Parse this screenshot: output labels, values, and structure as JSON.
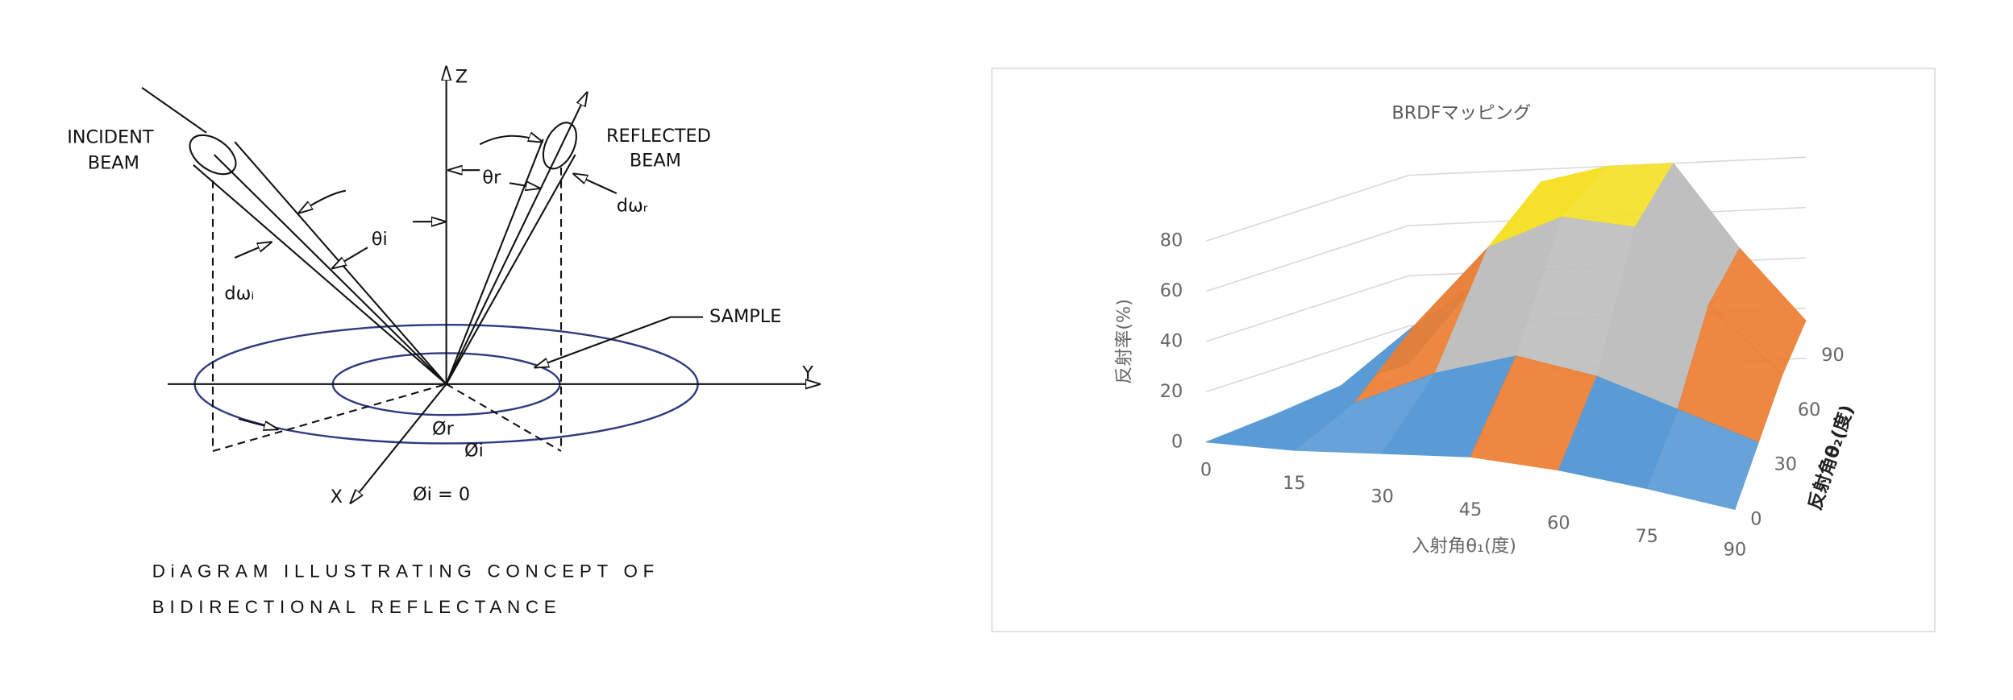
{
  "diagram": {
    "incident_beam": [
      "INCIDENT",
      "BEAM"
    ],
    "reflected_beam": [
      "REFLECTED",
      "BEAM"
    ],
    "axes": {
      "z": "Z",
      "y": "Y",
      "x": "X"
    },
    "angles": {
      "theta_i": "θi",
      "theta_r": "θr",
      "phi_r": "Ør",
      "phi_i": "Øi",
      "phi_i_zero": "Øi = 0"
    },
    "solid_angles": {
      "incident": "dωᵢ",
      "reflected": "dωᵣ"
    },
    "sample": "SAMPLE",
    "caption": [
      "DiAGRAM ILLUSTRATING CONCEPT OF",
      "BIDIRECTIONAL REFLECTANCE"
    ]
  },
  "chart_data": {
    "type": "surface",
    "title": "BRDFマッピング",
    "x_label": "入射角θ₁(度)",
    "y_label": "反射率(%)",
    "depth_label": "反射角θ₂(度)",
    "categories": [
      0,
      15,
      30,
      45,
      60,
      75,
      90
    ],
    "series": [
      {
        "name": "0",
        "values": [
          0,
          2,
          6,
          10,
          10,
          8,
          5
        ]
      },
      {
        "name": "30",
        "values": [
          2,
          10,
          25,
          35,
          30,
          20,
          10
        ]
      },
      {
        "name": "60",
        "values": [
          5,
          30,
          62,
          75,
          72,
          42,
          15
        ]
      },
      {
        "name": "90",
        "values": [
          5,
          35,
          75,
          80,
          80,
          45,
          15
        ]
      }
    ],
    "ylim": [
      0,
      80
    ],
    "yticks": [
      0,
      20,
      40,
      60,
      80
    ],
    "grid": true,
    "band_colors": [
      "#5b9bd5",
      "#ed7d31",
      "#bfbfbf",
      "#f5e12a"
    ]
  }
}
